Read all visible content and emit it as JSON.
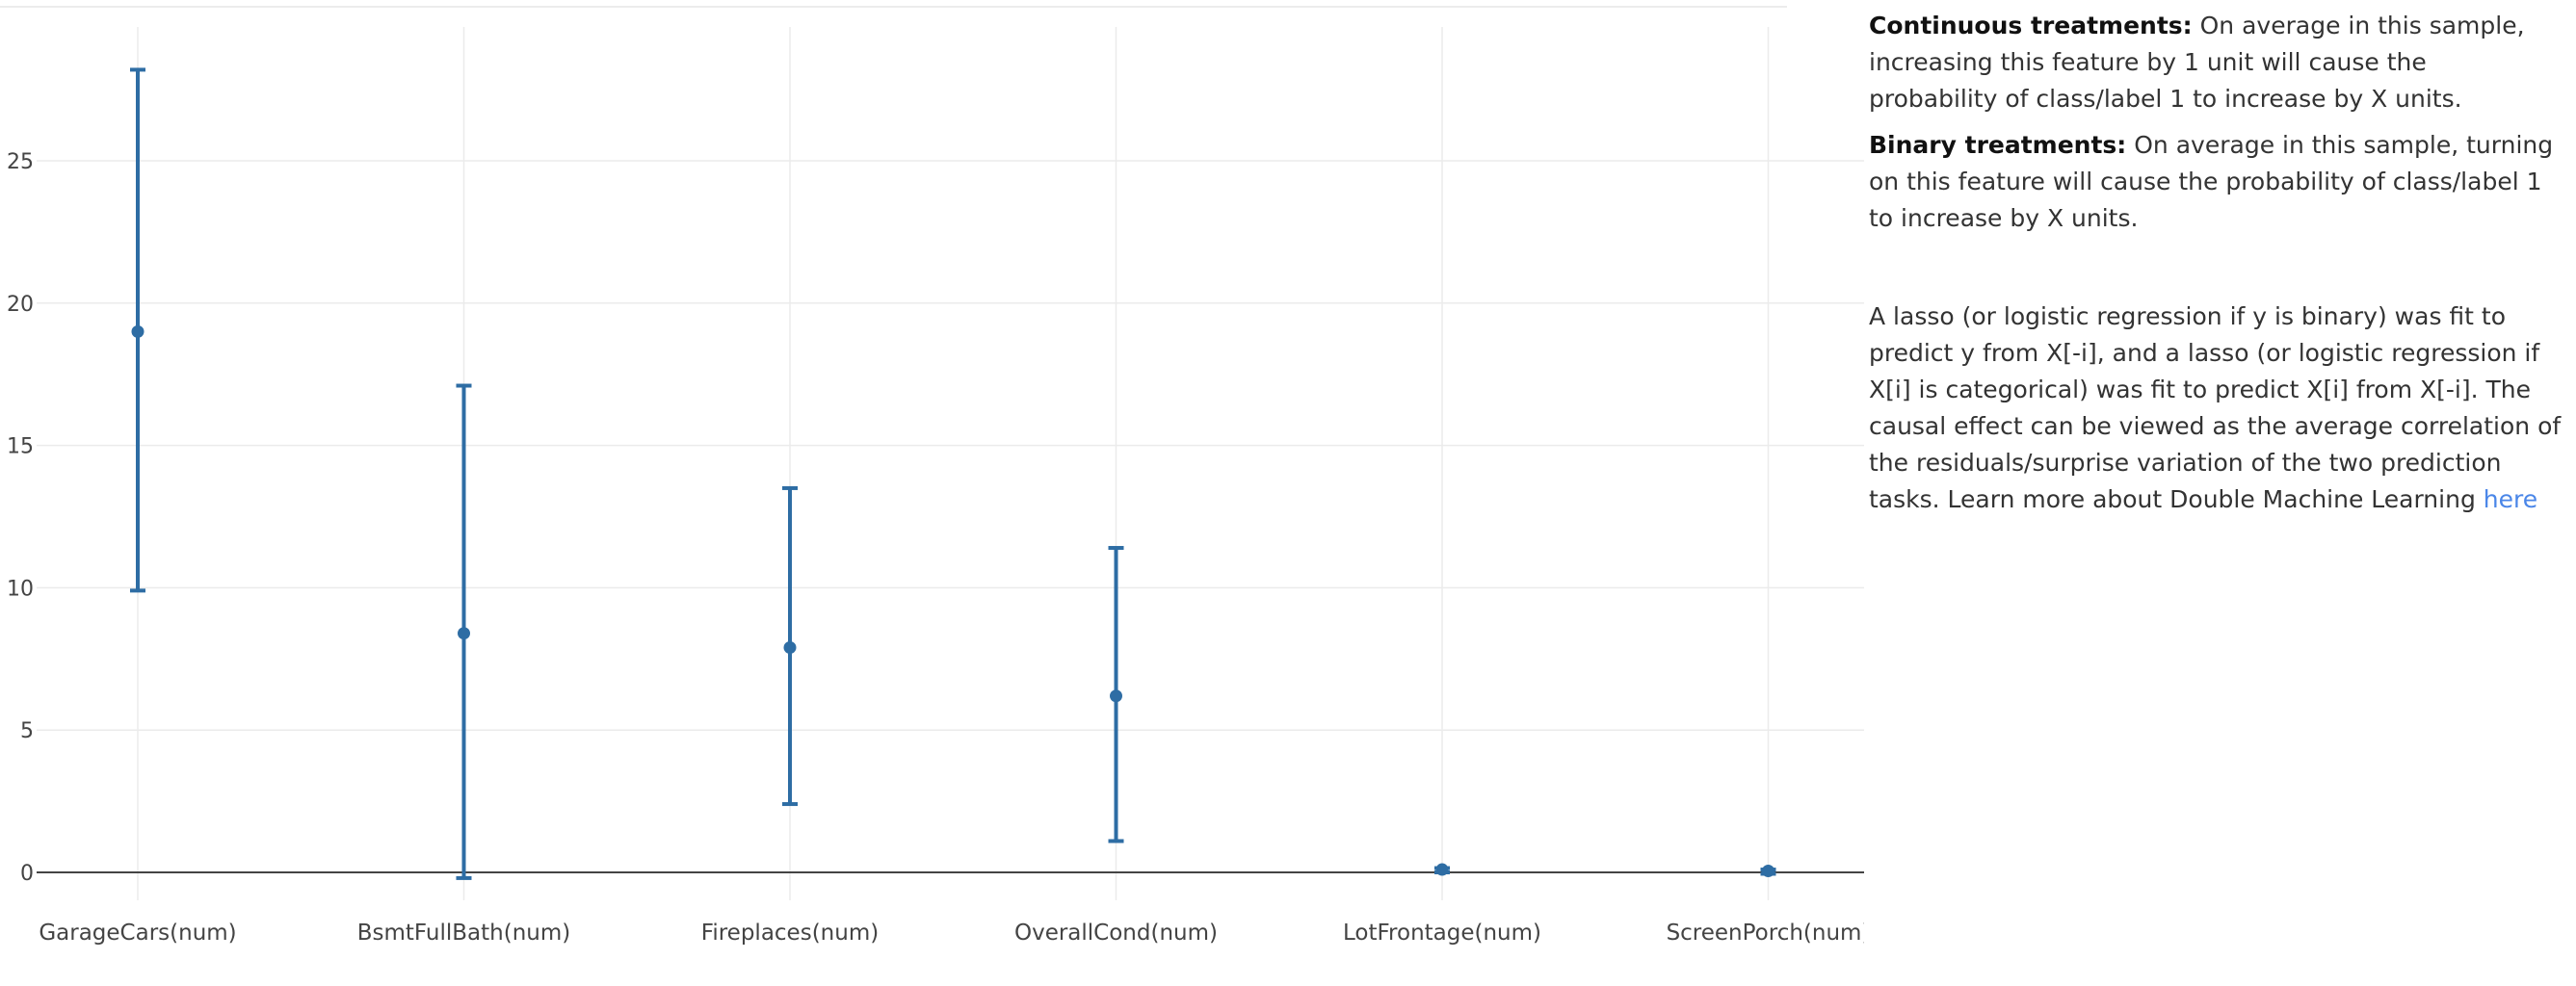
{
  "chart_data": {
    "type": "errorbar",
    "categories": [
      "GarageCars(num)",
      "BsmtFullBath(num)",
      "Fireplaces(num)",
      "OverallCond(num)",
      "LotFrontage(num)",
      "ScreenPorch(num)"
    ],
    "points": [
      {
        "category": "GarageCars(num)",
        "value": 19.0,
        "lower": 9.9,
        "upper": 28.2
      },
      {
        "category": "BsmtFullBath(num)",
        "value": 8.4,
        "lower": -0.2,
        "upper": 17.1
      },
      {
        "category": "Fireplaces(num)",
        "value": 7.9,
        "lower": 2.4,
        "upper": 13.5
      },
      {
        "category": "OverallCond(num)",
        "value": 6.2,
        "lower": 1.1,
        "upper": 11.4
      },
      {
        "category": "LotFrontage(num)",
        "value": 0.1,
        "lower": 0.0,
        "upper": 0.15
      },
      {
        "category": "ScreenPorch(num)",
        "value": 0.05,
        "lower": -0.05,
        "upper": 0.1
      }
    ],
    "yticks": [
      0,
      5,
      10,
      15,
      20,
      25
    ],
    "ylim": [
      -1.2,
      29.5
    ],
    "grid": true,
    "color": "#2e6da4",
    "title": "",
    "xlabel": "",
    "ylabel": ""
  },
  "panel": {
    "continuous_label": "Continuous treatments:",
    "continuous_text": " On average in this sample, increasing this feature by 1 unit will cause the probability of class/label 1 to increase by X units.",
    "binary_label": "Binary treatments:",
    "binary_text": " On average in this sample, turning on this feature will cause the probability of class/label 1 to increase by X units.",
    "method_text": "A lasso (or logistic regression if y is binary) was fit to predict y from X[-i], and a lasso (or logistic regression if X[i] is categorical) was fit to predict X[i] from X[-i]. The causal effect can be viewed as the average correlation of the residuals/surprise variation of the two prediction tasks. Learn more about Double Machine Learning ",
    "link_text": "here"
  }
}
